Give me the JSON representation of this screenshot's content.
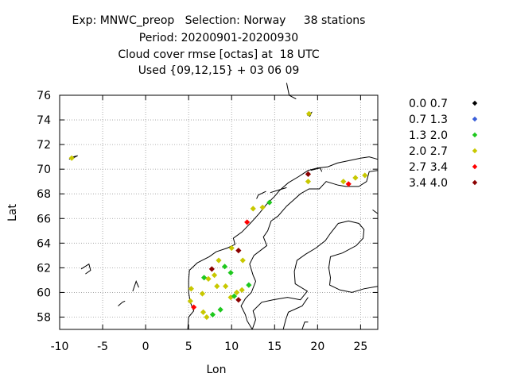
{
  "header": {
    "line1": "Exp: MNWC_preop   Selection: Norway     38 stations",
    "line2": "Period: 20200901-20200930",
    "line3": "Cloud cover rmse [octas] at  18 UTC",
    "line4": "Used {09,12,15} + 03 06 09"
  },
  "chart_data": {
    "type": "scatter",
    "xlabel": "Lon",
    "ylabel": "Lat",
    "xlim": [
      -10,
      27
    ],
    "ylim": [
      57,
      76
    ],
    "xticks": [
      -10,
      -5,
      0,
      5,
      10,
      15,
      20,
      25
    ],
    "yticks": [
      58,
      60,
      62,
      64,
      66,
      68,
      70,
      72,
      74,
      76
    ],
    "grid": true,
    "legend_position": "right",
    "legend": [
      {
        "label": "0.0 0.7",
        "color": "#000000"
      },
      {
        "label": "0.7 1.3",
        "color": "#3a5fd9"
      },
      {
        "label": "1.3 2.0",
        "color": "#1ec81e"
      },
      {
        "label": "2.0 2.7",
        "color": "#c8c800"
      },
      {
        "label": "2.7 3.4",
        "color": "#ff0000"
      },
      {
        "label": "3.4 4.0",
        "color": "#8b0000"
      }
    ],
    "points": [
      {
        "lon": -8.6,
        "lat": 70.9,
        "bin": 3
      },
      {
        "lon": 19.0,
        "lat": 74.5,
        "bin": 3
      },
      {
        "lon": 5.2,
        "lat": 59.3,
        "bin": 3
      },
      {
        "lon": 5.6,
        "lat": 58.8,
        "bin": 4
      },
      {
        "lon": 5.3,
        "lat": 60.3,
        "bin": 3
      },
      {
        "lon": 6.7,
        "lat": 58.4,
        "bin": 3
      },
      {
        "lon": 7.1,
        "lat": 58.0,
        "bin": 3
      },
      {
        "lon": 7.8,
        "lat": 58.2,
        "bin": 2
      },
      {
        "lon": 8.7,
        "lat": 58.6,
        "bin": 2
      },
      {
        "lon": 6.6,
        "lat": 59.9,
        "bin": 3
      },
      {
        "lon": 8.3,
        "lat": 60.5,
        "bin": 3
      },
      {
        "lon": 9.3,
        "lat": 60.5,
        "bin": 3
      },
      {
        "lon": 9.9,
        "lat": 59.6,
        "bin": 3
      },
      {
        "lon": 10.3,
        "lat": 59.7,
        "bin": 2
      },
      {
        "lon": 10.6,
        "lat": 60.0,
        "bin": 3
      },
      {
        "lon": 10.8,
        "lat": 59.4,
        "bin": 5
      },
      {
        "lon": 11.2,
        "lat": 60.2,
        "bin": 3
      },
      {
        "lon": 12.0,
        "lat": 60.6,
        "bin": 2
      },
      {
        "lon": 6.8,
        "lat": 61.2,
        "bin": 2
      },
      {
        "lon": 7.3,
        "lat": 61.1,
        "bin": 3
      },
      {
        "lon": 7.7,
        "lat": 61.9,
        "bin": 5
      },
      {
        "lon": 8.0,
        "lat": 61.4,
        "bin": 3
      },
      {
        "lon": 8.5,
        "lat": 62.6,
        "bin": 3
      },
      {
        "lon": 9.2,
        "lat": 62.1,
        "bin": 2
      },
      {
        "lon": 9.9,
        "lat": 61.6,
        "bin": 2
      },
      {
        "lon": 10.0,
        "lat": 63.6,
        "bin": 3
      },
      {
        "lon": 10.8,
        "lat": 63.4,
        "bin": 5
      },
      {
        "lon": 11.3,
        "lat": 62.6,
        "bin": 3
      },
      {
        "lon": 11.8,
        "lat": 65.7,
        "bin": 4
      },
      {
        "lon": 12.5,
        "lat": 66.8,
        "bin": 3
      },
      {
        "lon": 13.6,
        "lat": 66.9,
        "bin": 3
      },
      {
        "lon": 14.4,
        "lat": 67.3,
        "bin": 2
      },
      {
        "lon": 18.9,
        "lat": 69.6,
        "bin": 5
      },
      {
        "lon": 18.9,
        "lat": 69.0,
        "bin": 3
      },
      {
        "lon": 23.0,
        "lat": 69.0,
        "bin": 3
      },
      {
        "lon": 23.6,
        "lat": 68.8,
        "bin": 4
      },
      {
        "lon": 24.4,
        "lat": 69.3,
        "bin": 3
      },
      {
        "lon": 25.5,
        "lat": 69.5,
        "bin": 3
      }
    ]
  }
}
